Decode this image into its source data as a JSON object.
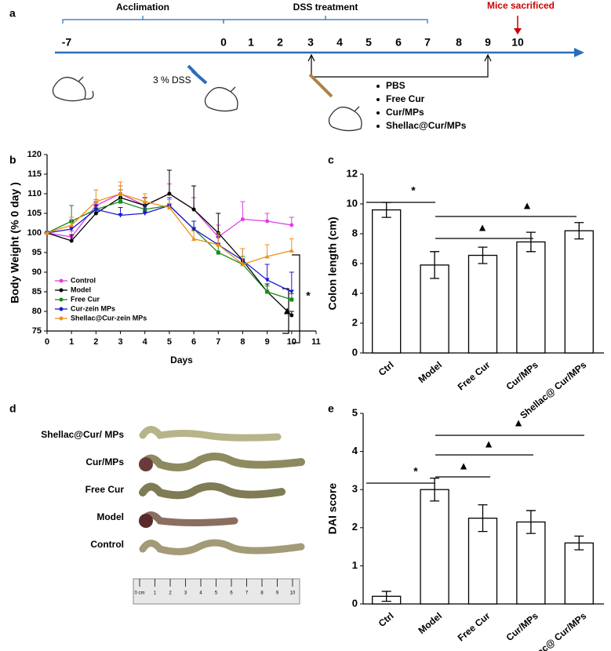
{
  "panel_labels": [
    "a",
    "b",
    "c",
    "d",
    "e"
  ],
  "timeline": {
    "phases": [
      "Acclimation",
      "DSS treatment"
    ],
    "endpoint": "Mice sacrificed",
    "days": [
      -7,
      0,
      1,
      2,
      3,
      4,
      5,
      6,
      7,
      8,
      9,
      10
    ],
    "dss_label": "3 % DSS",
    "groups": [
      "PBS",
      "Free Cur",
      "Cur/MPs",
      "Shellac@Cur/MPs"
    ]
  },
  "photo": {
    "labels": [
      "Shellac@Cur/ MPs",
      "Cur/MPs",
      "Free Cur",
      "Model",
      "Control"
    ],
    "ruler": [
      "0 cm",
      "1",
      "2",
      "3",
      "4",
      "5",
      "6",
      "7",
      "8",
      "9",
      "10"
    ]
  },
  "chart_data": [
    {
      "type": "line",
      "xlabel": "Days",
      "ylabel": "Body Weight (% 0 day )",
      "x": [
        0,
        1,
        2,
        3,
        4,
        5,
        6,
        7,
        8,
        9,
        10
      ],
      "xlim": [
        0,
        11
      ],
      "xticks": [
        0,
        1,
        2,
        3,
        4,
        5,
        6,
        7,
        8,
        9,
        10,
        11
      ],
      "ylim": [
        75,
        120
      ],
      "yticks": [
        75,
        80,
        85,
        90,
        95,
        100,
        105,
        110,
        115,
        120
      ],
      "annotations": [
        "▲",
        "*"
      ],
      "series": [
        {
          "name": "Control",
          "color": "#e040e0",
          "marker": "circle",
          "values": [
            100,
            99,
            107,
            110,
            107,
            110,
            106,
            99,
            103.5,
            103,
            102
          ],
          "errors": [
            0,
            1.5,
            1.5,
            2,
            2,
            2.5,
            3,
            3,
            4.5,
            2,
            2
          ]
        },
        {
          "name": "Model",
          "color": "#000000",
          "marker": "circle",
          "values": [
            100,
            98,
            105,
            109,
            107,
            110,
            106,
            100,
            93,
            85,
            79
          ],
          "errors": [
            0,
            1.5,
            2,
            2,
            2,
            6,
            6,
            5,
            3,
            2,
            1
          ]
        },
        {
          "name": "Free Cur",
          "color": "#1a8a1a",
          "marker": "square",
          "values": [
            100,
            103,
            106,
            108,
            106,
            107,
            101,
            95,
            92,
            85,
            83
          ],
          "errors": [
            0,
            4,
            2,
            3,
            2,
            2,
            2,
            2,
            2,
            1.5,
            1.5
          ]
        },
        {
          "name": "Cur-zein MPs",
          "color": "#1a1ad0",
          "marker": "triangle-down",
          "values": [
            100,
            101,
            106,
            104.5,
            105,
            107,
            101,
            97,
            93,
            88,
            85
          ],
          "errors": [
            0,
            2,
            2,
            2,
            2,
            2,
            2,
            2,
            3,
            4,
            5
          ]
        },
        {
          "name": "Shellac@Cur-zein MPs",
          "color": "#f0901a",
          "marker": "triangle-up",
          "values": [
            100,
            102,
            108,
            110,
            108,
            106.5,
            98.5,
            97,
            92,
            94,
            95.5
          ],
          "errors": [
            0,
            2,
            3,
            3,
            2,
            2,
            2,
            3,
            4,
            3,
            3
          ]
        }
      ]
    },
    {
      "type": "bar",
      "ylabel": "Colon length (cm)",
      "categories": [
        "Ctrl",
        "Model",
        "Free Cur",
        "Cur/MPs",
        "Shellac@ Cur/MPs"
      ],
      "values": [
        9.6,
        5.9,
        6.55,
        7.45,
        8.2
      ],
      "errors": [
        0.5,
        0.9,
        0.55,
        0.65,
        0.55
      ],
      "ylim": [
        0,
        12
      ],
      "yticks": [
        0,
        2,
        4,
        6,
        8,
        10,
        12
      ],
      "annotations": [
        "*",
        "▲",
        "▲"
      ]
    },
    {
      "type": "bar",
      "ylabel": "DAI score",
      "categories": [
        "Ctrl",
        "Model",
        "Free Cur",
        "Cur/MPs",
        "Shellac@ Cur/MPs"
      ],
      "values": [
        0.2,
        3.0,
        2.25,
        2.15,
        1.6
      ],
      "errors": [
        0.13,
        0.3,
        0.35,
        0.3,
        0.18
      ],
      "ylim": [
        0,
        5
      ],
      "yticks": [
        0,
        1,
        2,
        3,
        4,
        5
      ],
      "annotations": [
        "*",
        "▲",
        "▲",
        "▲"
      ]
    }
  ]
}
